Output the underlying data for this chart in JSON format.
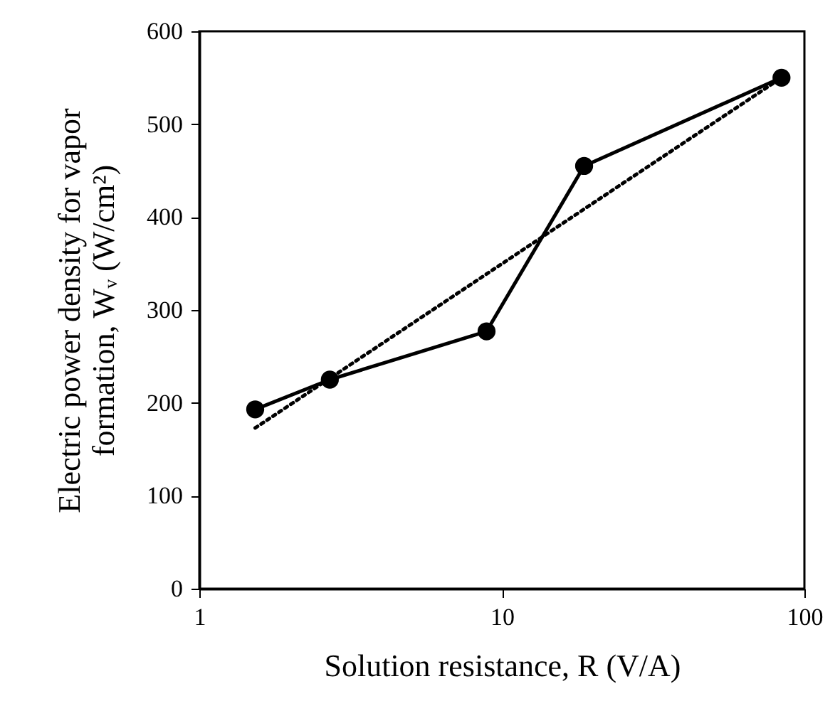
{
  "chart_data": {
    "type": "line",
    "xlabel": "Solution resistance, R (V/A)",
    "ylabel": "Electric power density for vapor\nformation, Wᵥ (W/cm²)",
    "log": "x",
    "xlim": [
      1,
      100
    ],
    "xticks": [
      1,
      10,
      100
    ],
    "ylim": [
      0,
      600
    ],
    "yticks": [
      0,
      100,
      200,
      300,
      400,
      500,
      600
    ],
    "grid": false,
    "series": [
      {
        "color": "#000000",
        "marker": "circle",
        "line_style": "solid",
        "x": [
          1.53,
          2.7,
          8.9,
          18.7,
          84
        ],
        "values": [
          193,
          225,
          277,
          455,
          550
        ]
      },
      {
        "color": "#000000",
        "marker": "none",
        "line_style": "dotted",
        "x": [
          1.53,
          84
        ],
        "values": [
          173,
          550
        ]
      }
    ]
  }
}
